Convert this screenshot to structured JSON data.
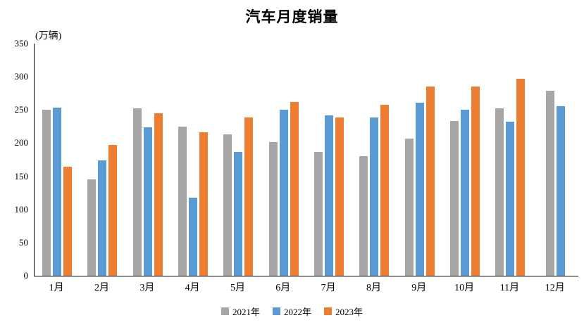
{
  "title": "汽车月度销量",
  "unit_label": "(万辆)",
  "chart_data": {
    "type": "bar",
    "title": "汽车月度销量",
    "ylabel": "(万辆)",
    "xlabel": "",
    "ylim": [
      0,
      350
    ],
    "ytick_step": 50,
    "yticks": [
      0,
      50,
      100,
      150,
      200,
      250,
      300,
      350
    ],
    "grid": false,
    "legend_position": "bottom",
    "categories": [
      "1月",
      "2月",
      "3月",
      "4月",
      "5月",
      "6月",
      "7月",
      "8月",
      "9月",
      "10月",
      "11月",
      "12月"
    ],
    "series": [
      {
        "name": "2021年",
        "color": "#A6A6A6",
        "values": [
          250.3,
          145.5,
          252.6,
          225.2,
          212.8,
          201.5,
          186.4,
          179.9,
          206.7,
          233.3,
          252.2,
          278.6
        ]
      },
      {
        "name": "2022年",
        "color": "#5B9BD5",
        "values": [
          253.1,
          173.7,
          223.4,
          118.1,
          186.2,
          250.2,
          242.0,
          238.3,
          261.0,
          250.5,
          232.8,
          255.6
        ]
      },
      {
        "name": "2023年",
        "color": "#ED7D31",
        "values": [
          164.9,
          197.6,
          245.1,
          215.9,
          238.2,
          262.2,
          238.8,
          258.2,
          285.8,
          285.3,
          297.0,
          null
        ]
      }
    ]
  }
}
